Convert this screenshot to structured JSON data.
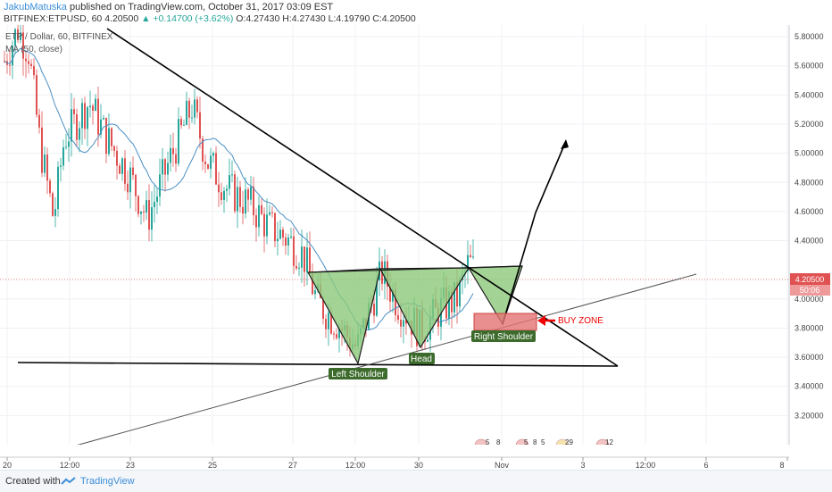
{
  "header": {
    "author": "JakubMatuska",
    "published_text": "published on TradingView.com, October 31, 2017 03:09 EST",
    "symbol_line": "BITFINEX:ETPUSD, 60",
    "last_value": "4.20500",
    "change": "+0.14700 (+3.62%)",
    "ohlc": "O:4.27430 H:4.27430 L:4.19790 C:4.20500"
  },
  "legend": {
    "series_title": "ETP / Dollar, 60, BITFINEX",
    "ma_label": "MA (50, close)"
  },
  "price_axis": {
    "ticks": [
      "5.80000",
      "5.60000",
      "5.40000",
      "5.20000",
      "5.00000",
      "4.80000",
      "4.60000",
      "4.40000",
      "4.00000",
      "3.80000",
      "3.60000",
      "3.40000",
      "3.20000"
    ],
    "current_price": "4.20500",
    "countdown": "50:06"
  },
  "time_axis": {
    "ticks": [
      "20",
      "12:00",
      "23",
      "25",
      "27",
      "12:00",
      "30",
      "Nov",
      "3",
      "12:00",
      "6",
      "8"
    ]
  },
  "annotations": {
    "left_shoulder": "Left Shoulder",
    "head": "Head",
    "right_shoulder": "Right Shoulder",
    "buy_zone": "BUY ZONE"
  },
  "events": [
    "5",
    "8",
    "5",
    "8",
    "5",
    "29",
    "12"
  ],
  "colors": {
    "up_candle": "#26a69a",
    "down_candle": "#e05252",
    "ma_line": "#4a8fc4",
    "pattern_fill": "#8cc97a",
    "label_bg": "#3c6b2c",
    "buy_zone": "#e57373",
    "current_price": "#e05252"
  },
  "chart_data": {
    "type": "candlestick",
    "title": "ETP / Dollar, 60, BITFINEX",
    "ylim": [
      3.0,
      5.88
    ],
    "indicator": "MA (50, close)",
    "pattern": "inverse head and shoulders",
    "points": {
      "left_shoulder": 3.65,
      "head": 3.75,
      "right_shoulder": 3.92,
      "neckline": 4.28,
      "current_price": 4.205
    }
  },
  "footer": {
    "created_with": "Created with",
    "brand": "TradingView"
  }
}
